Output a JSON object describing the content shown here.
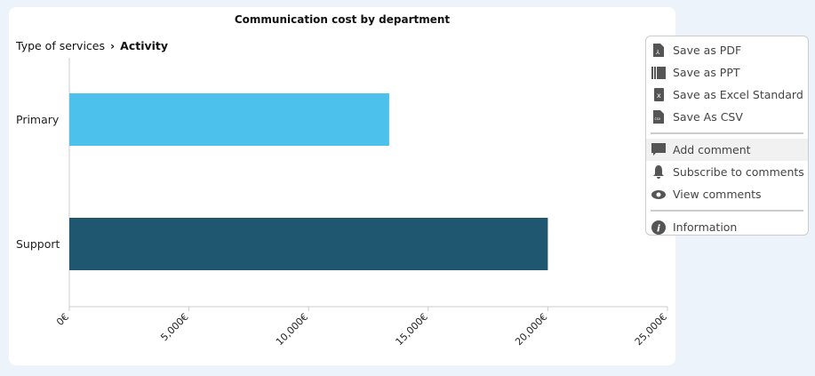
{
  "breadcrumb": {
    "parent": "Type of services",
    "current": "Activity"
  },
  "chart_data": {
    "type": "bar",
    "orientation": "horizontal",
    "title": "Communication cost by department",
    "categories": [
      "Primary",
      "Support"
    ],
    "values": [
      13370,
      20000
    ],
    "colors": [
      "#4bc1ec",
      "#1f5670"
    ],
    "xlim": [
      0,
      25000
    ],
    "xticks": [
      "0€",
      "5,000€",
      "10,000€",
      "15,000€",
      "20,000€",
      "25,000€"
    ],
    "xtick_values": [
      0,
      5000,
      10000,
      15000,
      20000,
      25000
    ],
    "xlabel": "",
    "ylabel": ""
  },
  "menu": {
    "items": [
      {
        "label": "Save as PDF",
        "icon": "pdf-icon"
      },
      {
        "label": "Save as PPT",
        "icon": "ppt-icon"
      },
      {
        "label": "Save as Excel Standard",
        "icon": "excel-icon"
      },
      {
        "label": "Save As CSV",
        "icon": "csv-icon"
      },
      {
        "label": "Add comment",
        "icon": "comment-icon"
      },
      {
        "label": "Subscribe to comments",
        "icon": "bell-icon"
      },
      {
        "label": "View comments",
        "icon": "eye-icon"
      },
      {
        "label": "Information",
        "icon": "info-icon"
      }
    ]
  }
}
